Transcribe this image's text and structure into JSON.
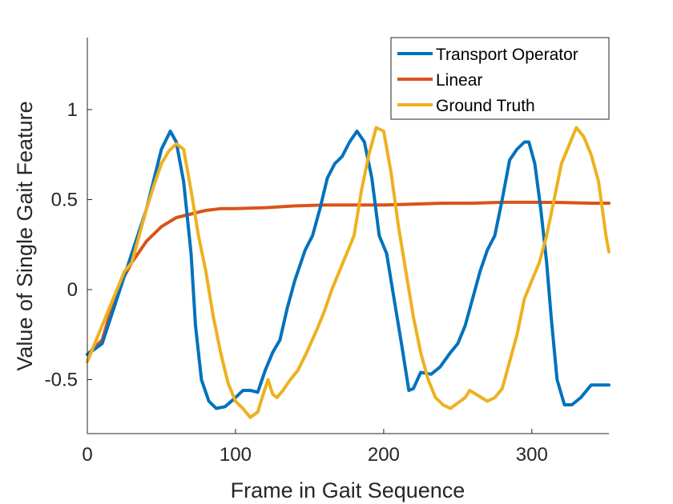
{
  "chart_data": {
    "type": "line",
    "xlabel": "Frame in Gait Sequence",
    "ylabel": "Value of Single Gait Feature",
    "xlim": [
      0,
      352
    ],
    "ylim": [
      -0.8,
      1.4
    ],
    "xticks": [
      0,
      100,
      200,
      300
    ],
    "yticks": [
      -0.5,
      0,
      0.5,
      1
    ],
    "xtick_labels": [
      "0",
      "100",
      "200",
      "300"
    ],
    "ytick_labels": [
      "-0.5",
      "0",
      "0.5",
      "1"
    ],
    "grid": false,
    "legend_position": "top-right",
    "series": [
      {
        "name": "Transport Operator",
        "color": "#0072BD",
        "points": [
          [
            0,
            -0.36
          ],
          [
            10,
            -0.3
          ],
          [
            20,
            -0.05
          ],
          [
            30,
            0.2
          ],
          [
            40,
            0.45
          ],
          [
            50,
            0.78
          ],
          [
            56,
            0.88
          ],
          [
            60,
            0.82
          ],
          [
            65,
            0.6
          ],
          [
            70,
            0.2
          ],
          [
            73,
            -0.2
          ],
          [
            77,
            -0.5
          ],
          [
            82,
            -0.62
          ],
          [
            87,
            -0.66
          ],
          [
            93,
            -0.65
          ],
          [
            100,
            -0.6
          ],
          [
            105,
            -0.56
          ],
          [
            110,
            -0.56
          ],
          [
            115,
            -0.57
          ],
          [
            120,
            -0.45
          ],
          [
            125,
            -0.35
          ],
          [
            130,
            -0.28
          ],
          [
            135,
            -0.1
          ],
          [
            140,
            0.05
          ],
          [
            147,
            0.22
          ],
          [
            152,
            0.3
          ],
          [
            157,
            0.45
          ],
          [
            162,
            0.62
          ],
          [
            167,
            0.7
          ],
          [
            172,
            0.74
          ],
          [
            177,
            0.82
          ],
          [
            182,
            0.88
          ],
          [
            187,
            0.82
          ],
          [
            192,
            0.62
          ],
          [
            197,
            0.3
          ],
          [
            202,
            0.2
          ],
          [
            207,
            -0.05
          ],
          [
            212,
            -0.3
          ],
          [
            217,
            -0.56
          ],
          [
            220,
            -0.55
          ],
          [
            225,
            -0.46
          ],
          [
            232,
            -0.47
          ],
          [
            238,
            -0.43
          ],
          [
            245,
            -0.35
          ],
          [
            250,
            -0.3
          ],
          [
            255,
            -0.2
          ],
          [
            260,
            -0.05
          ],
          [
            265,
            0.1
          ],
          [
            270,
            0.22
          ],
          [
            275,
            0.3
          ],
          [
            280,
            0.5
          ],
          [
            285,
            0.72
          ],
          [
            290,
            0.78
          ],
          [
            295,
            0.82
          ],
          [
            298,
            0.82
          ],
          [
            302,
            0.7
          ],
          [
            306,
            0.45
          ],
          [
            310,
            0.15
          ],
          [
            313,
            -0.15
          ],
          [
            317,
            -0.5
          ],
          [
            322,
            -0.64
          ],
          [
            327,
            -0.64
          ],
          [
            333,
            -0.6
          ],
          [
            340,
            -0.53
          ],
          [
            345,
            -0.53
          ],
          [
            352,
            -0.53
          ]
        ]
      },
      {
        "name": "Linear",
        "color": "#D95319",
        "points": [
          [
            0,
            -0.36
          ],
          [
            10,
            -0.28
          ],
          [
            20,
            0.0
          ],
          [
            30,
            0.15
          ],
          [
            40,
            0.27
          ],
          [
            50,
            0.35
          ],
          [
            60,
            0.4
          ],
          [
            70,
            0.42
          ],
          [
            80,
            0.44
          ],
          [
            90,
            0.45
          ],
          [
            100,
            0.45
          ],
          [
            120,
            0.455
          ],
          [
            140,
            0.465
          ],
          [
            160,
            0.47
          ],
          [
            180,
            0.47
          ],
          [
            200,
            0.47
          ],
          [
            220,
            0.475
          ],
          [
            240,
            0.48
          ],
          [
            260,
            0.48
          ],
          [
            280,
            0.485
          ],
          [
            300,
            0.485
          ],
          [
            320,
            0.484
          ],
          [
            340,
            0.48
          ],
          [
            352,
            0.48
          ]
        ]
      },
      {
        "name": "Ground Truth",
        "color": "#EDB120",
        "points": [
          [
            0,
            -0.4
          ],
          [
            5,
            -0.3
          ],
          [
            10,
            -0.2
          ],
          [
            15,
            -0.1
          ],
          [
            20,
            0.0
          ],
          [
            25,
            0.1
          ],
          [
            30,
            0.15
          ],
          [
            35,
            0.3
          ],
          [
            40,
            0.45
          ],
          [
            45,
            0.58
          ],
          [
            50,
            0.7
          ],
          [
            55,
            0.77
          ],
          [
            60,
            0.81
          ],
          [
            65,
            0.78
          ],
          [
            70,
            0.55
          ],
          [
            75,
            0.3
          ],
          [
            80,
            0.1
          ],
          [
            85,
            -0.15
          ],
          [
            90,
            -0.35
          ],
          [
            95,
            -0.52
          ],
          [
            100,
            -0.62
          ],
          [
            105,
            -0.66
          ],
          [
            110,
            -0.71
          ],
          [
            115,
            -0.68
          ],
          [
            118,
            -0.6
          ],
          [
            122,
            -0.5
          ],
          [
            125,
            -0.58
          ],
          [
            128,
            -0.6
          ],
          [
            132,
            -0.56
          ],
          [
            137,
            -0.5
          ],
          [
            142,
            -0.45
          ],
          [
            148,
            -0.35
          ],
          [
            155,
            -0.22
          ],
          [
            160,
            -0.12
          ],
          [
            165,
            0.0
          ],
          [
            170,
            0.1
          ],
          [
            175,
            0.2
          ],
          [
            180,
            0.3
          ],
          [
            185,
            0.55
          ],
          [
            190,
            0.75
          ],
          [
            195,
            0.9
          ],
          [
            200,
            0.88
          ],
          [
            205,
            0.65
          ],
          [
            210,
            0.35
          ],
          [
            215,
            0.1
          ],
          [
            220,
            -0.15
          ],
          [
            225,
            -0.35
          ],
          [
            230,
            -0.5
          ],
          [
            235,
            -0.6
          ],
          [
            240,
            -0.64
          ],
          [
            245,
            -0.66
          ],
          [
            250,
            -0.63
          ],
          [
            255,
            -0.6
          ],
          [
            258,
            -0.56
          ],
          [
            262,
            -0.58
          ],
          [
            266,
            -0.6
          ],
          [
            270,
            -0.62
          ],
          [
            275,
            -0.6
          ],
          [
            280,
            -0.55
          ],
          [
            285,
            -0.4
          ],
          [
            290,
            -0.25
          ],
          [
            295,
            -0.05
          ],
          [
            300,
            0.05
          ],
          [
            305,
            0.15
          ],
          [
            310,
            0.3
          ],
          [
            315,
            0.5
          ],
          [
            320,
            0.7
          ],
          [
            325,
            0.8
          ],
          [
            330,
            0.9
          ],
          [
            335,
            0.85
          ],
          [
            340,
            0.75
          ],
          [
            345,
            0.6
          ],
          [
            350,
            0.3
          ],
          [
            352,
            0.21
          ]
        ]
      }
    ]
  }
}
